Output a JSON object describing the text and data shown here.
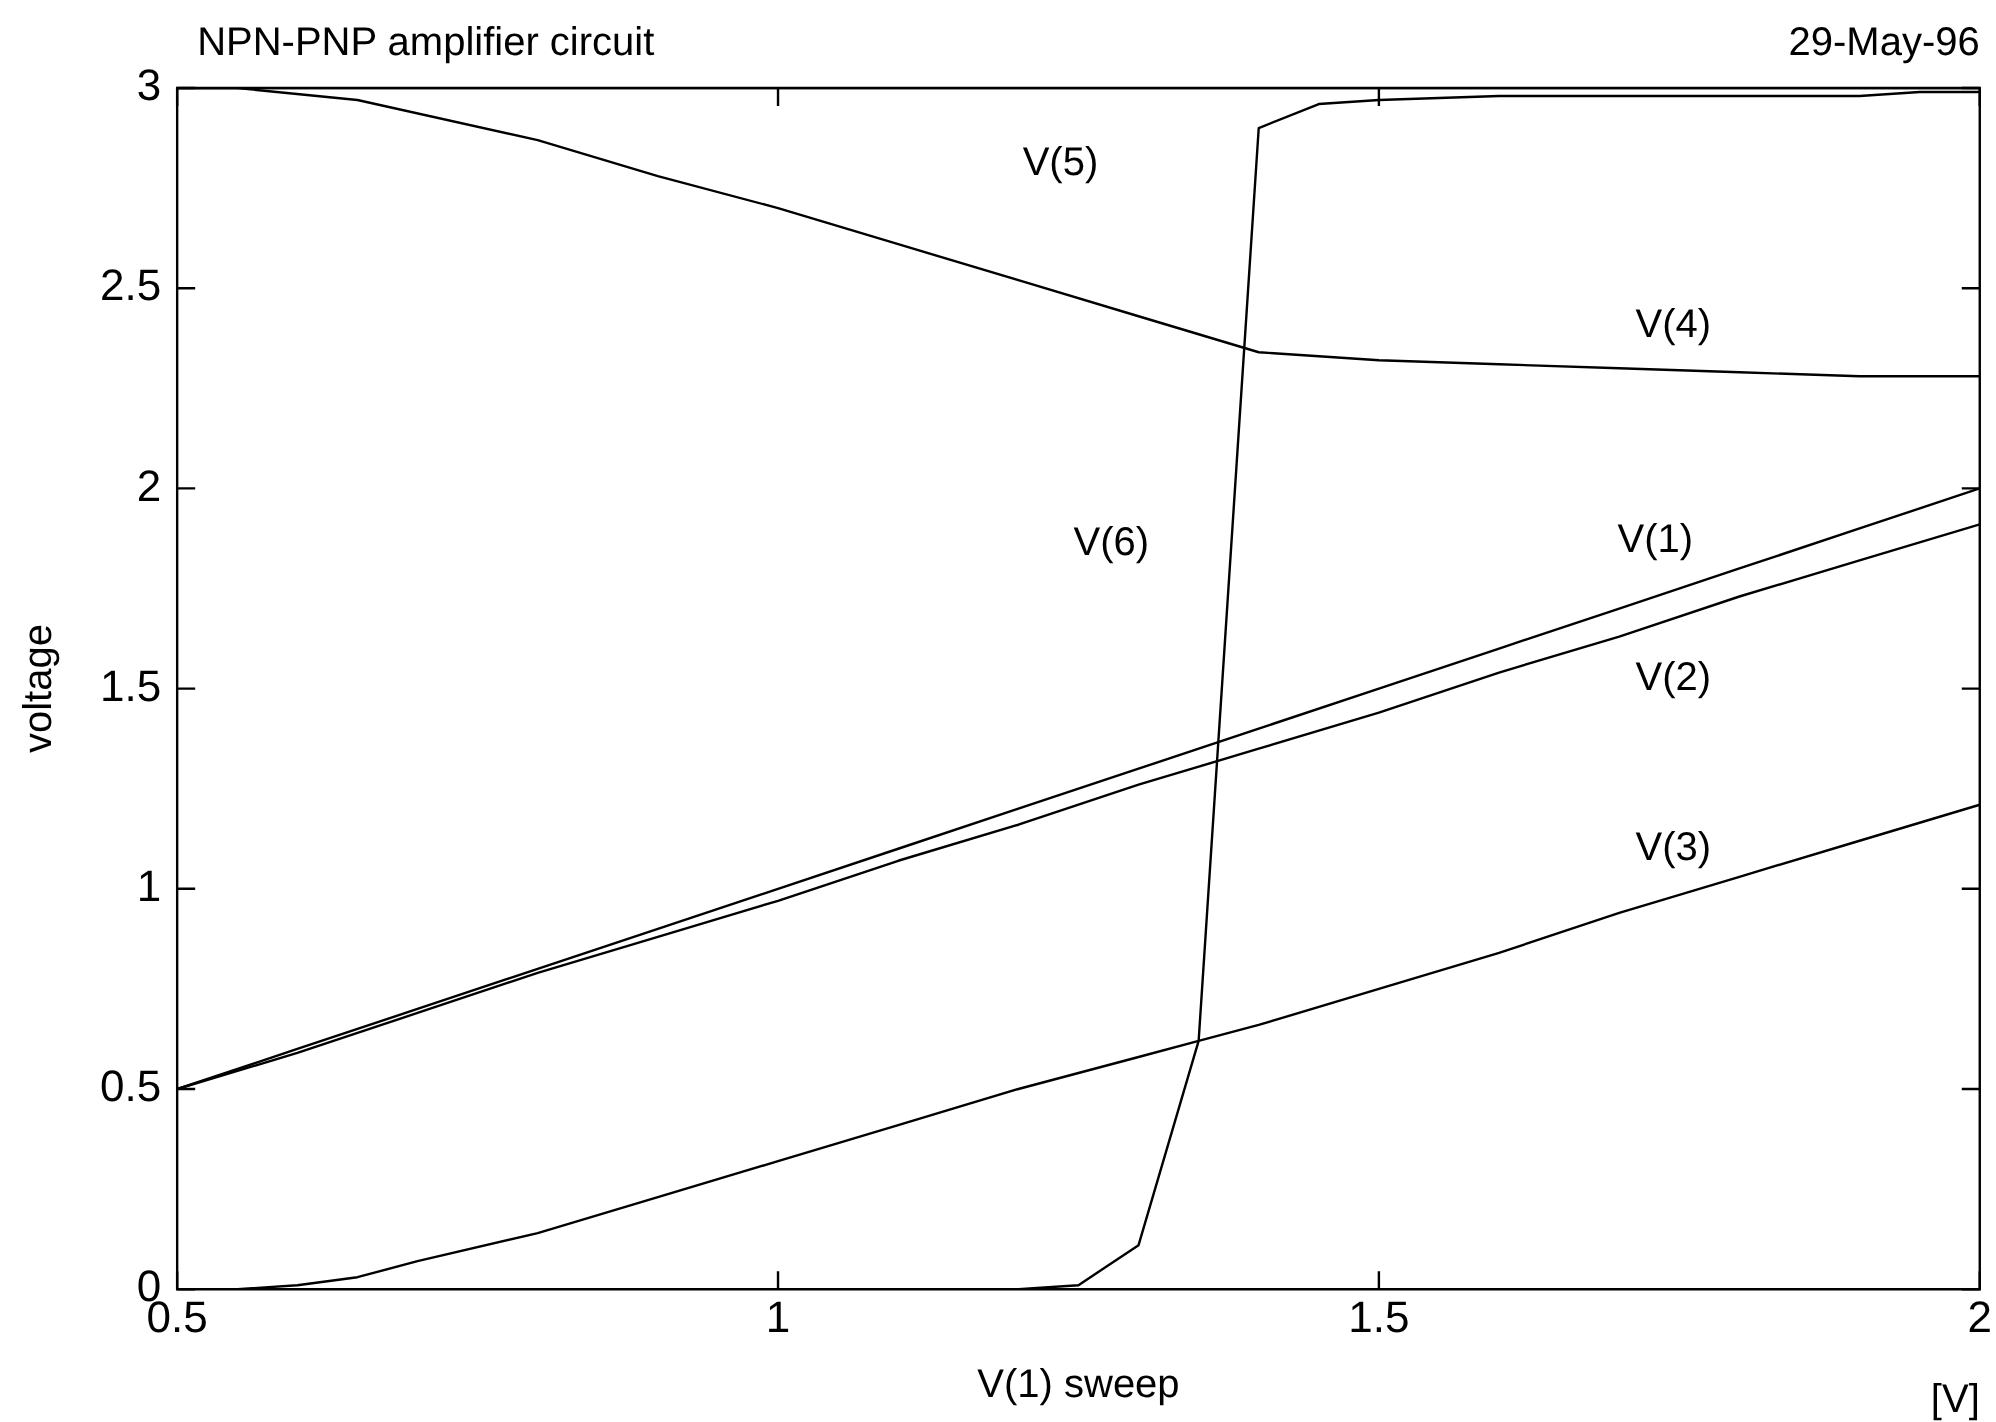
{
  "chart_data": {
    "type": "line",
    "title": "NPN-PNP amplifier circuit",
    "xlabel": "V(1) sweep",
    "ylabel": "voltage",
    "xlim": [
      0.5,
      2
    ],
    "xticks": [
      0.5,
      1,
      1.5,
      2
    ],
    "ylim": [
      0,
      3
    ],
    "yticks": [
      0,
      0.5,
      1,
      1.5,
      2,
      2.5,
      3
    ],
    "grid": false,
    "legend": false,
    "marker": "none",
    "line_style": "solid",
    "series": [
      {
        "name": "V(1)",
        "color": "#000000",
        "x": [
          0.5,
          0.6,
          0.7,
          0.8,
          0.9,
          1.0,
          1.1,
          1.2,
          1.3,
          1.4,
          1.5,
          1.6,
          1.7,
          1.8,
          1.9,
          2.0
        ],
        "values": [
          0.5,
          0.6,
          0.7,
          0.8,
          0.9,
          1.0,
          1.1,
          1.2,
          1.3,
          1.4,
          1.5,
          1.6,
          1.7,
          1.8,
          1.9,
          2.0
        ]
      },
      {
        "name": "V(2)",
        "color": "#000000",
        "x": [
          0.5,
          0.6,
          0.7,
          0.8,
          0.9,
          1.0,
          1.1,
          1.2,
          1.3,
          1.4,
          1.5,
          1.6,
          1.7,
          1.8,
          1.9,
          2.0
        ],
        "values": [
          0.5,
          0.59,
          0.69,
          0.79,
          0.88,
          0.97,
          1.07,
          1.16,
          1.26,
          1.35,
          1.44,
          1.54,
          1.63,
          1.73,
          1.82,
          1.91
        ]
      },
      {
        "name": "V(3)",
        "color": "#000000",
        "x": [
          0.5,
          0.55,
          0.6,
          0.65,
          0.7,
          0.8,
          0.9,
          1.0,
          1.1,
          1.2,
          1.3,
          1.35,
          1.4,
          1.5,
          1.6,
          1.7,
          1.8,
          1.9,
          2.0
        ],
        "values": [
          0,
          0,
          0.01,
          0.03,
          0.07,
          0.14,
          0.23,
          0.32,
          0.41,
          0.5,
          0.58,
          0.62,
          0.66,
          0.75,
          0.84,
          0.94,
          1.03,
          1.12,
          1.21
        ]
      },
      {
        "name": "V(4)",
        "color": "#000000",
        "x": [
          0.5,
          0.55,
          0.65,
          0.8,
          0.9,
          1.0,
          1.1,
          1.2,
          1.3,
          1.4,
          1.5,
          1.6,
          1.7,
          1.8,
          1.9,
          2.0
        ],
        "values": [
          3.0,
          3.0,
          2.97,
          2.87,
          2.78,
          2.7,
          2.61,
          2.52,
          2.43,
          2.34,
          2.32,
          2.31,
          2.3,
          2.29,
          2.28,
          2.28
        ]
      },
      {
        "name": "V(5)",
        "color": "#000000",
        "x": [
          0.5,
          2.0
        ],
        "values": [
          3.0,
          3.0
        ]
      },
      {
        "name": "V(6)",
        "color": "#000000",
        "x": [
          0.5,
          1.2,
          1.25,
          1.3,
          1.35,
          1.4,
          1.45,
          1.5,
          1.6,
          1.9,
          1.95,
          2.0
        ],
        "values": [
          0,
          0,
          0.01,
          0.11,
          0.62,
          2.9,
          2.96,
          2.97,
          2.98,
          2.98,
          2.99,
          2.99
        ]
      }
    ],
    "annotations": [
      "29-May-96",
      "[V]"
    ]
  }
}
